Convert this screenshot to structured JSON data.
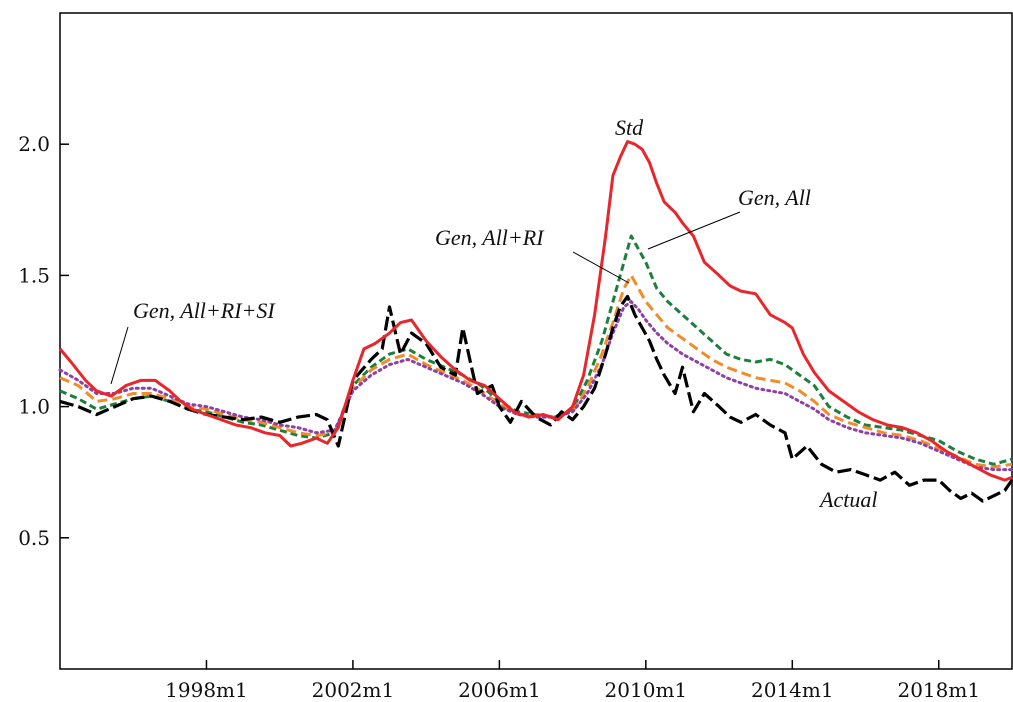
{
  "chart_data": {
    "type": "line",
    "title": "",
    "xlabel": "",
    "ylabel": "",
    "x_start": "1994m1",
    "x_end": "2020m1",
    "xlim": [
      1994.0,
      2020.0
    ],
    "ylim": [
      0.0,
      2.5
    ],
    "grid": false,
    "legend": "none",
    "x_ticks": [
      {
        "value": 1998.0,
        "label": "1998m1"
      },
      {
        "value": 2002.0,
        "label": "2002m1"
      },
      {
        "value": 2006.0,
        "label": "2006m1"
      },
      {
        "value": 2010.0,
        "label": "2010m1"
      },
      {
        "value": 2014.0,
        "label": "2014m1"
      },
      {
        "value": 2018.0,
        "label": "2018m1"
      }
    ],
    "y_ticks": [
      {
        "value": 0.5,
        "label": "0.5"
      },
      {
        "value": 1.0,
        "label": "1.0"
      },
      {
        "value": 1.5,
        "label": "1.5"
      },
      {
        "value": 2.0,
        "label": "2.0"
      }
    ],
    "series": [
      {
        "name": "Actual",
        "color": "#000000",
        "style": "long-dash",
        "x": [
          1994.0,
          1994.5,
          1995.0,
          1995.5,
          1996.0,
          1996.5,
          1997.0,
          1997.5,
          1998.0,
          1998.5,
          1999.0,
          1999.5,
          2000.0,
          2000.5,
          2001.0,
          2001.3,
          2001.6,
          2002.0,
          2002.5,
          2002.8,
          2003.0,
          2003.3,
          2003.6,
          2004.0,
          2004.4,
          2004.8,
          2005.0,
          2005.4,
          2005.8,
          2006.0,
          2006.3,
          2006.6,
          2007.0,
          2007.4,
          2007.7,
          2008.0,
          2008.3,
          2008.6,
          2008.9,
          2009.1,
          2009.3,
          2009.5,
          2009.7,
          2009.9,
          2010.1,
          2010.3,
          2010.5,
          2010.8,
          2011.0,
          2011.3,
          2011.6,
          2012.0,
          2012.3,
          2012.6,
          2013.0,
          2013.4,
          2013.8,
          2014.0,
          2014.4,
          2014.8,
          2015.2,
          2015.6,
          2016.0,
          2016.4,
          2016.8,
          2017.2,
          2017.6,
          2018.0,
          2018.3,
          2018.6,
          2018.9,
          2019.2,
          2019.5,
          2019.8,
          2020.0
        ],
        "values": [
          1.02,
          1.0,
          0.97,
          1.0,
          1.03,
          1.04,
          1.02,
          0.99,
          0.97,
          0.96,
          0.95,
          0.96,
          0.94,
          0.96,
          0.97,
          0.95,
          0.85,
          1.1,
          1.18,
          1.22,
          1.38,
          1.2,
          1.28,
          1.24,
          1.15,
          1.12,
          1.3,
          1.05,
          1.08,
          1.0,
          0.94,
          1.02,
          0.96,
          0.93,
          0.98,
          0.95,
          1.0,
          1.07,
          1.2,
          1.3,
          1.38,
          1.42,
          1.35,
          1.3,
          1.25,
          1.18,
          1.12,
          1.05,
          1.15,
          0.98,
          1.05,
          1.0,
          0.96,
          0.94,
          0.97,
          0.93,
          0.9,
          0.8,
          0.85,
          0.78,
          0.75,
          0.76,
          0.74,
          0.72,
          0.75,
          0.7,
          0.72,
          0.72,
          0.68,
          0.65,
          0.67,
          0.64,
          0.66,
          0.68,
          0.72
        ]
      },
      {
        "name": "Std",
        "color": "#e8262b",
        "style": "solid",
        "x": [
          1994.0,
          1994.3,
          1994.7,
          1995.0,
          1995.4,
          1995.8,
          1996.2,
          1996.6,
          1997.0,
          1997.3,
          1997.6,
          1998.0,
          1998.4,
          1998.8,
          1999.2,
          1999.6,
          2000.0,
          2000.3,
          2000.6,
          2001.0,
          2001.3,
          2001.6,
          2002.0,
          2002.3,
          2002.6,
          2003.0,
          2003.3,
          2003.6,
          2004.0,
          2004.4,
          2004.8,
          2005.2,
          2005.6,
          2006.0,
          2006.4,
          2006.8,
          2007.2,
          2007.6,
          2008.0,
          2008.3,
          2008.6,
          2008.9,
          2009.1,
          2009.3,
          2009.5,
          2009.7,
          2009.9,
          2010.1,
          2010.3,
          2010.5,
          2010.8,
          2011.0,
          2011.3,
          2011.6,
          2012.0,
          2012.3,
          2012.6,
          2013.0,
          2013.4,
          2013.8,
          2014.0,
          2014.3,
          2014.6,
          2015.0,
          2015.4,
          2015.8,
          2016.2,
          2016.6,
          2017.0,
          2017.4,
          2017.8,
          2018.2,
          2018.6,
          2019.0,
          2019.4,
          2019.8,
          2020.0
        ],
        "values": [
          1.22,
          1.17,
          1.1,
          1.06,
          1.04,
          1.08,
          1.1,
          1.1,
          1.06,
          1.02,
          0.99,
          0.97,
          0.95,
          0.93,
          0.92,
          0.9,
          0.89,
          0.85,
          0.86,
          0.88,
          0.86,
          0.92,
          1.1,
          1.22,
          1.24,
          1.28,
          1.32,
          1.33,
          1.25,
          1.19,
          1.14,
          1.1,
          1.08,
          1.03,
          0.98,
          0.96,
          0.97,
          0.95,
          1.0,
          1.12,
          1.35,
          1.65,
          1.88,
          1.95,
          2.01,
          2.0,
          1.98,
          1.93,
          1.85,
          1.78,
          1.74,
          1.7,
          1.65,
          1.55,
          1.5,
          1.46,
          1.44,
          1.43,
          1.35,
          1.32,
          1.3,
          1.2,
          1.13,
          1.06,
          1.02,
          0.98,
          0.95,
          0.93,
          0.92,
          0.9,
          0.87,
          0.83,
          0.8,
          0.77,
          0.74,
          0.72,
          0.73
        ]
      },
      {
        "name": "Gen, All",
        "color": "#1c7f3c",
        "style": "short-dash",
        "x": [
          1994.0,
          1994.5,
          1995.0,
          1995.5,
          1996.0,
          1996.5,
          1997.0,
          1997.5,
          1998.0,
          1998.5,
          1999.0,
          1999.5,
          2000.0,
          2000.5,
          2001.0,
          2001.5,
          2002.0,
          2002.5,
          2003.0,
          2003.5,
          2004.0,
          2004.5,
          2005.0,
          2005.5,
          2006.0,
          2006.5,
          2007.0,
          2007.5,
          2008.0,
          2008.4,
          2008.8,
          2009.1,
          2009.4,
          2009.6,
          2009.8,
          2010.0,
          2010.3,
          2010.6,
          2011.0,
          2011.4,
          2011.8,
          2012.2,
          2012.6,
          2013.0,
          2013.4,
          2013.8,
          2014.2,
          2014.6,
          2015.0,
          2015.5,
          2016.0,
          2016.5,
          2017.0,
          2017.5,
          2018.0,
          2018.5,
          2019.0,
          2019.5,
          2020.0
        ],
        "values": [
          1.06,
          1.03,
          0.99,
          1.01,
          1.03,
          1.04,
          1.02,
          0.99,
          0.98,
          0.96,
          0.94,
          0.93,
          0.91,
          0.89,
          0.88,
          0.9,
          1.08,
          1.15,
          1.2,
          1.22,
          1.18,
          1.15,
          1.12,
          1.08,
          1.02,
          0.98,
          0.97,
          0.96,
          0.99,
          1.1,
          1.25,
          1.4,
          1.55,
          1.65,
          1.6,
          1.55,
          1.45,
          1.4,
          1.35,
          1.3,
          1.25,
          1.2,
          1.18,
          1.17,
          1.18,
          1.16,
          1.12,
          1.08,
          1.0,
          0.96,
          0.93,
          0.92,
          0.91,
          0.89,
          0.87,
          0.83,
          0.8,
          0.78,
          0.8
        ]
      },
      {
        "name": "Gen, All+RI",
        "color": "#f28c28",
        "style": "dash",
        "x": [
          1994.0,
          1994.5,
          1995.0,
          1995.5,
          1996.0,
          1996.5,
          1997.0,
          1997.5,
          1998.0,
          1998.5,
          1999.0,
          1999.5,
          2000.0,
          2000.5,
          2001.0,
          2001.5,
          2002.0,
          2002.5,
          2003.0,
          2003.5,
          2004.0,
          2004.5,
          2005.0,
          2005.5,
          2006.0,
          2006.5,
          2007.0,
          2007.5,
          2008.0,
          2008.4,
          2008.8,
          2009.1,
          2009.4,
          2009.6,
          2009.8,
          2010.0,
          2010.3,
          2010.6,
          2011.0,
          2011.4,
          2011.8,
          2012.2,
          2012.6,
          2013.0,
          2013.4,
          2013.8,
          2014.2,
          2014.6,
          2015.0,
          2015.5,
          2016.0,
          2016.5,
          2017.0,
          2017.5,
          2018.0,
          2018.5,
          2019.0,
          2019.5,
          2020.0
        ],
        "values": [
          1.11,
          1.08,
          1.02,
          1.03,
          1.05,
          1.05,
          1.03,
          1.0,
          0.99,
          0.97,
          0.95,
          0.94,
          0.92,
          0.9,
          0.89,
          0.9,
          1.07,
          1.14,
          1.18,
          1.2,
          1.16,
          1.13,
          1.1,
          1.06,
          1.01,
          0.97,
          0.97,
          0.96,
          0.98,
          1.07,
          1.2,
          1.32,
          1.45,
          1.5,
          1.45,
          1.4,
          1.35,
          1.3,
          1.26,
          1.22,
          1.18,
          1.15,
          1.13,
          1.11,
          1.1,
          1.09,
          1.06,
          1.02,
          0.97,
          0.94,
          0.92,
          0.9,
          0.89,
          0.87,
          0.84,
          0.81,
          0.78,
          0.77,
          0.78
        ]
      },
      {
        "name": "Gen, All+RI+SI",
        "color": "#8e3fa8",
        "style": "dot",
        "x": [
          1994.0,
          1994.5,
          1995.0,
          1995.5,
          1996.0,
          1996.5,
          1997.0,
          1997.5,
          1998.0,
          1998.5,
          1999.0,
          1999.5,
          2000.0,
          2000.5,
          2001.0,
          2001.5,
          2002.0,
          2002.5,
          2003.0,
          2003.5,
          2004.0,
          2004.5,
          2005.0,
          2005.5,
          2006.0,
          2006.5,
          2007.0,
          2007.5,
          2008.0,
          2008.4,
          2008.8,
          2009.1,
          2009.4,
          2009.6,
          2009.8,
          2010.0,
          2010.3,
          2010.6,
          2011.0,
          2011.4,
          2011.8,
          2012.2,
          2012.6,
          2013.0,
          2013.4,
          2013.8,
          2014.2,
          2014.6,
          2015.0,
          2015.5,
          2016.0,
          2016.5,
          2017.0,
          2017.5,
          2018.0,
          2018.5,
          2019.0,
          2019.5,
          2020.0
        ],
        "values": [
          1.14,
          1.1,
          1.05,
          1.05,
          1.07,
          1.07,
          1.04,
          1.01,
          1.0,
          0.98,
          0.96,
          0.95,
          0.93,
          0.92,
          0.9,
          0.91,
          1.06,
          1.12,
          1.16,
          1.18,
          1.15,
          1.12,
          1.09,
          1.05,
          1.0,
          0.97,
          0.96,
          0.96,
          0.98,
          1.05,
          1.16,
          1.28,
          1.38,
          1.4,
          1.37,
          1.33,
          1.28,
          1.24,
          1.2,
          1.17,
          1.14,
          1.11,
          1.09,
          1.07,
          1.06,
          1.05,
          1.02,
          0.99,
          0.95,
          0.92,
          0.9,
          0.89,
          0.88,
          0.86,
          0.83,
          0.8,
          0.77,
          0.76,
          0.76
        ]
      }
    ],
    "annotations": [
      {
        "text": "Std",
        "series": "Std"
      },
      {
        "text": "Gen, All",
        "series": "Gen, All"
      },
      {
        "text": "Gen, All+RI",
        "series": "Gen, All+RI"
      },
      {
        "text": "Gen, All+RI+SI",
        "series": "Gen, All+RI+SI"
      },
      {
        "text": "Actual",
        "series": "Actual"
      }
    ]
  }
}
